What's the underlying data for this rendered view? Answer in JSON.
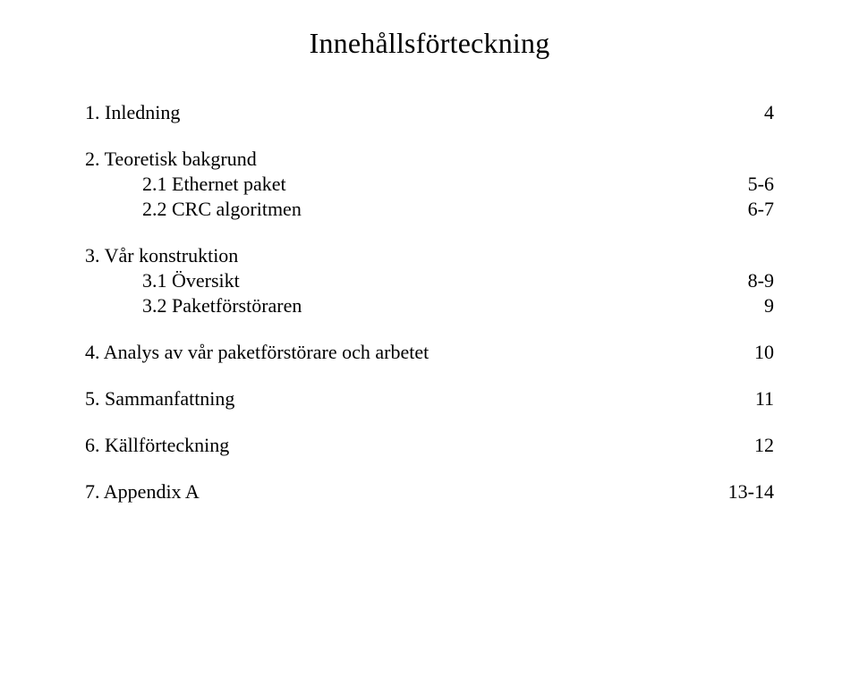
{
  "title": "Innehållsförteckning",
  "typography": {
    "font_family": "Times New Roman",
    "title_fontsize_pt": 24,
    "body_fontsize_pt": 16,
    "text_color": "#000000",
    "background_color": "#ffffff"
  },
  "toc": {
    "s1": {
      "label": "1. Inledning",
      "page": "4"
    },
    "s2": {
      "label": "2. Teoretisk bakgrund",
      "sub1": {
        "label": "2.1 Ethernet paket",
        "page": "5-6"
      },
      "sub2": {
        "label": "2.2 CRC algoritmen",
        "page": "6-7"
      }
    },
    "s3": {
      "label": "3. Vår konstruktion",
      "sub1": {
        "label": "3.1 Översikt",
        "page": "8-9"
      },
      "sub2": {
        "label": "3.2 Paketförstöraren",
        "page": "9"
      }
    },
    "s4": {
      "label": "4. Analys av vår paketförstörare och arbetet",
      "page": "10"
    },
    "s5": {
      "label": "5. Sammanfattning",
      "page": "11"
    },
    "s6": {
      "label": "6. Källförteckning",
      "page": "12"
    },
    "s7": {
      "label": "7. Appendix A",
      "page": "13-14"
    }
  }
}
